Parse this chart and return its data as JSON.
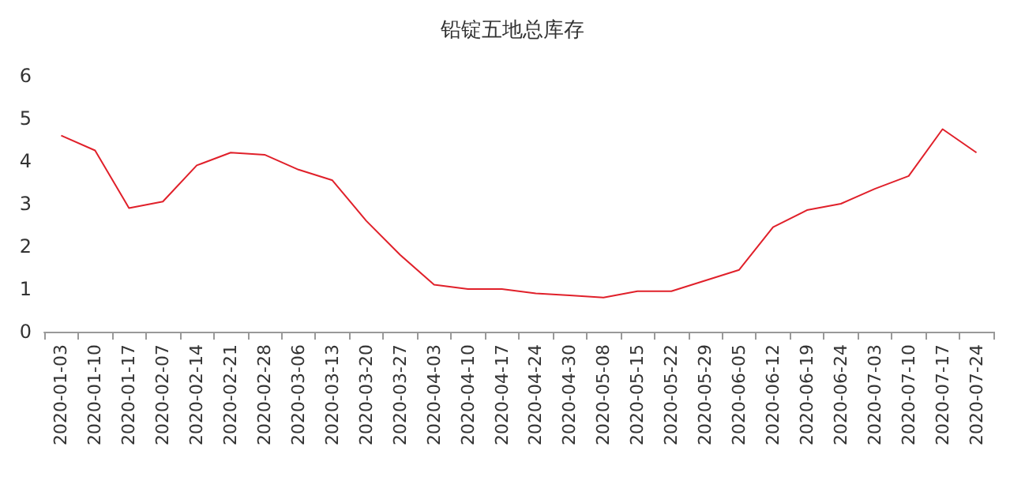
{
  "chart_data": {
    "type": "line",
    "title": "铅锭五地总库存",
    "categories": [
      "2020-01-03",
      "2020-01-10",
      "2020-01-17",
      "2020-02-07",
      "2020-02-14",
      "2020-02-21",
      "2020-02-28",
      "2020-03-06",
      "2020-03-13",
      "2020-03-20",
      "2020-03-27",
      "2020-04-03",
      "2020-04-10",
      "2020-04-17",
      "2020-04-24",
      "2020-04-30",
      "2020-05-08",
      "2020-05-15",
      "2020-05-22",
      "2020-05-29",
      "2020-06-05",
      "2020-06-12",
      "2020-06-19",
      "2020-06-24",
      "2020-07-03",
      "2020-07-10",
      "2020-07-17",
      "2020-07-24"
    ],
    "series": [
      {
        "color": "#e0202a",
        "values": [
          4.6,
          4.25,
          2.9,
          3.05,
          3.9,
          4.2,
          4.15,
          3.8,
          3.55,
          2.6,
          1.8,
          1.1,
          1.0,
          1.0,
          0.9,
          0.85,
          0.8,
          0.95,
          0.95,
          1.2,
          1.45,
          2.45,
          2.85,
          3.0,
          3.35,
          3.65,
          4.75,
          4.2
        ]
      }
    ],
    "ylim": [
      0,
      6
    ],
    "yticks": [
      0,
      1,
      2,
      3,
      4,
      5,
      6
    ],
    "grid": false,
    "marker": "none",
    "line_style": "solid"
  }
}
